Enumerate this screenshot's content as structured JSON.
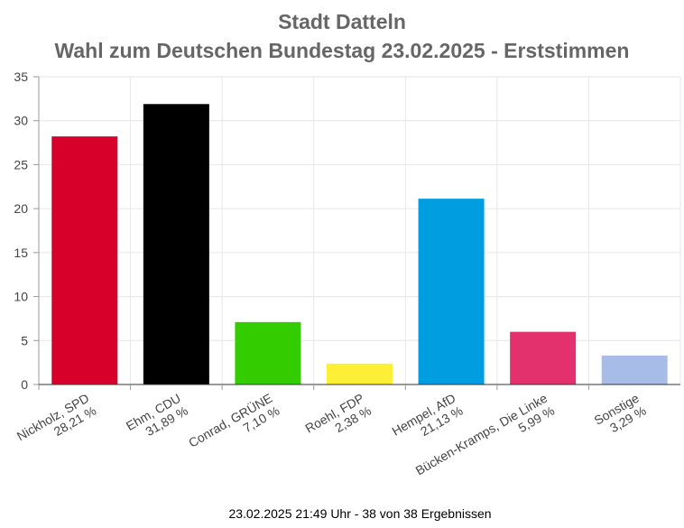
{
  "chart_data": {
    "type": "bar",
    "title": "Stadt Datteln",
    "subtitle": "Wahl zum Deutschen Bundestag 23.02.2025  - Erststimmen",
    "categories": [
      {
        "name": "Nickholz, SPD",
        "label": "28,21 %"
      },
      {
        "name": "Ehm, CDU",
        "label": "31,89 %"
      },
      {
        "name": "Conrad, GRÜNE",
        "label": "7,10 %"
      },
      {
        "name": "Roehl, FDP",
        "label": "2,38 %"
      },
      {
        "name": "Hempel, AfD",
        "label": "21,13 %"
      },
      {
        "name": "Bücken-Kramps, Die Linke",
        "label": "5,99 %"
      },
      {
        "name": "Sonstige",
        "label": "3,29 %"
      }
    ],
    "values": [
      28.21,
      31.89,
      7.1,
      2.38,
      21.13,
      5.99,
      3.29
    ],
    "colors": [
      "#d7002b",
      "#000000",
      "#33cc00",
      "#fdee36",
      "#009ee0",
      "#e3316e",
      "#a7bde8"
    ],
    "ylim": [
      0,
      35
    ],
    "yticks": [
      0,
      5,
      10,
      15,
      20,
      25,
      30,
      35
    ],
    "grid": true,
    "xlabel": "",
    "ylabel": ""
  },
  "footer": "23.02.2025 21:49 Uhr - 38 von 38 Ergebnissen"
}
